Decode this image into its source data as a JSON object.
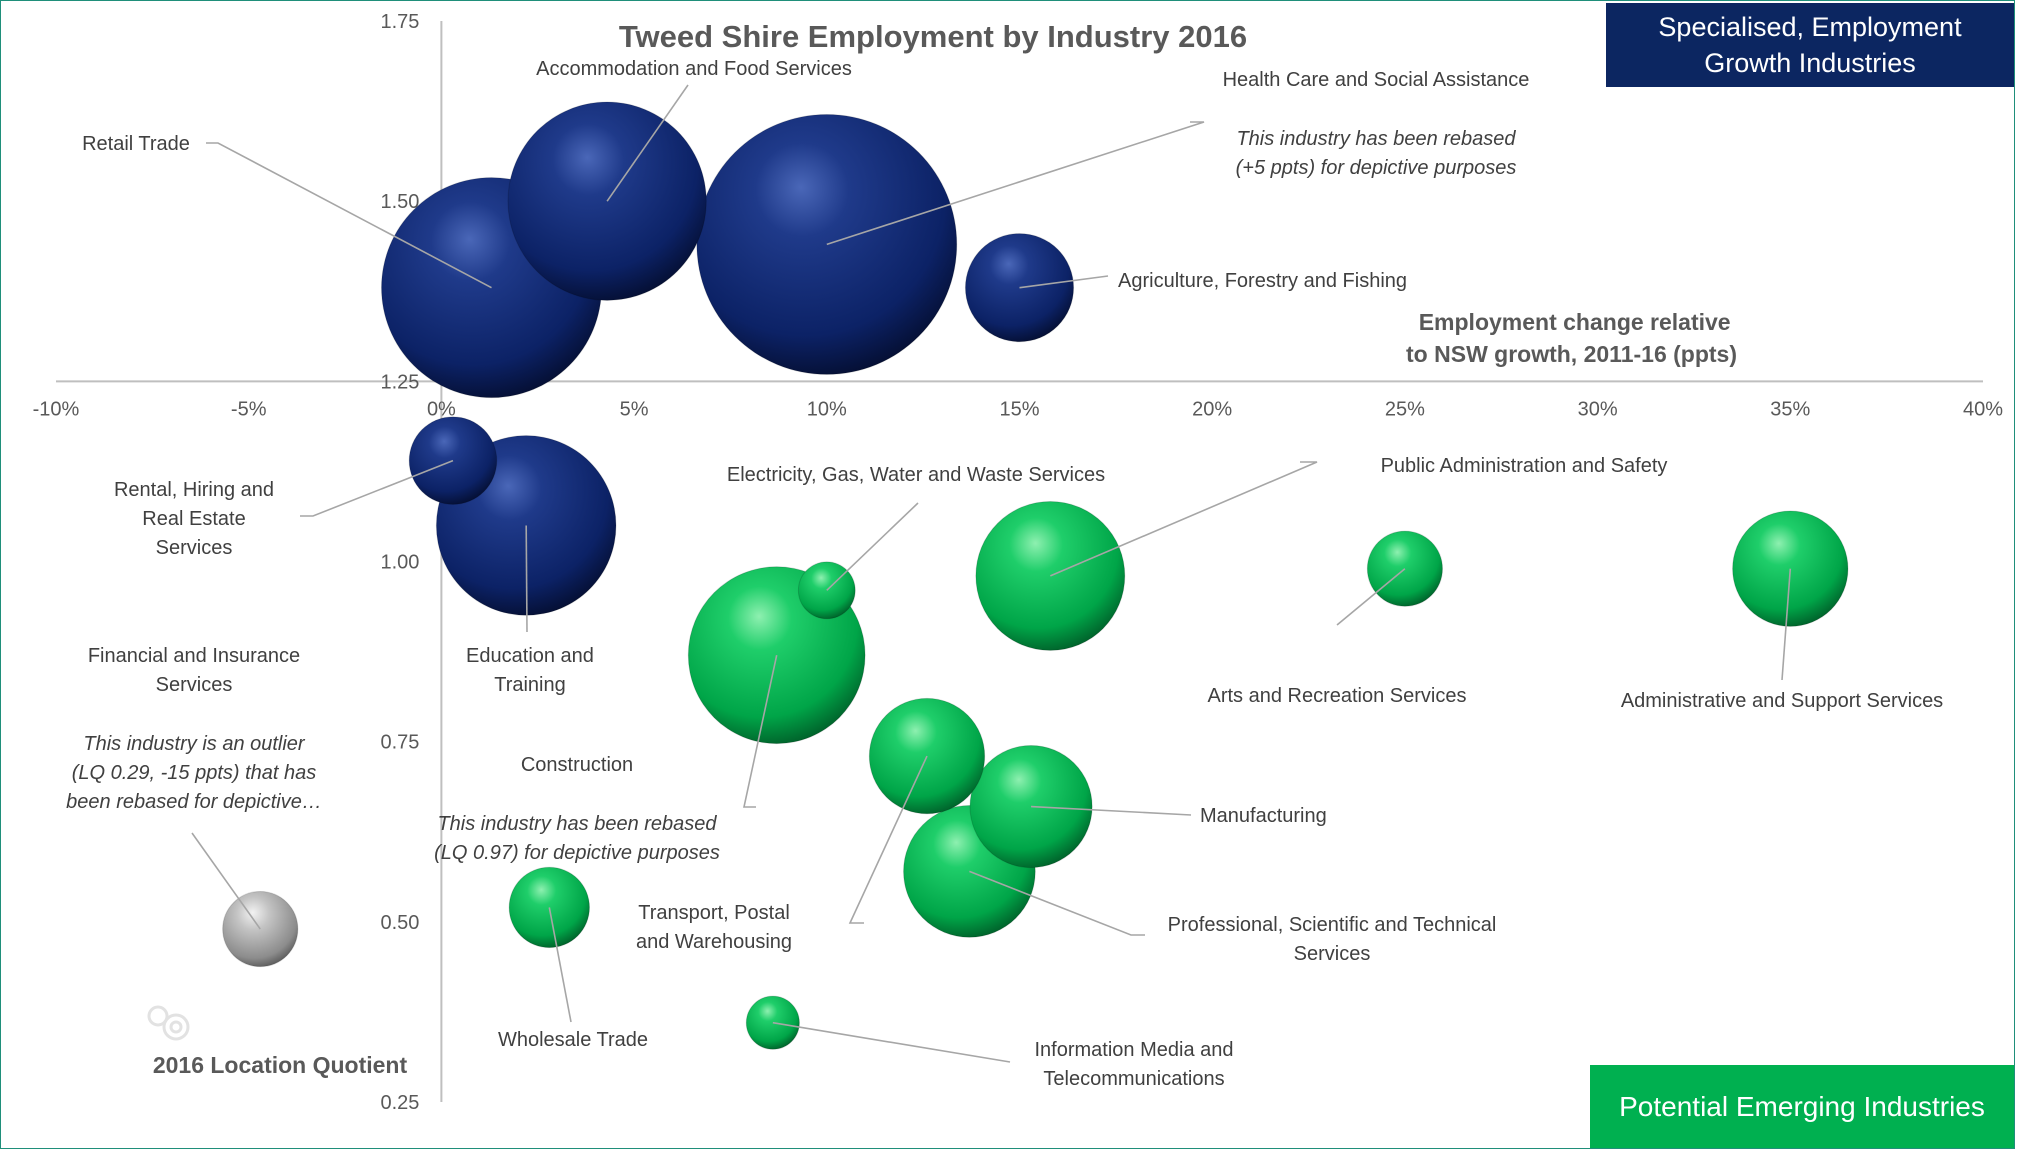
{
  "chart_data": {
    "type": "scatter",
    "subtype": "bubble",
    "title": "Tweed Shire Employment by Industry 2016",
    "xlabel": "Employment change relative to NSW growth, 2011-16 (ppts)",
    "xlabel_lines": [
      "Employment change relative",
      "to NSW growth, 2011-16 (ppts)"
    ],
    "ylabel": "2016 Location Quotient",
    "xlim": [
      -10,
      40
    ],
    "ylim": [
      0.25,
      1.75
    ],
    "x_ticks": [
      {
        "v": -10,
        "label": "-10%"
      },
      {
        "v": -5,
        "label": "-5%"
      },
      {
        "v": 0,
        "label": "0%"
      },
      {
        "v": 5,
        "label": "5%"
      },
      {
        "v": 10,
        "label": "10%"
      },
      {
        "v": 15,
        "label": "15%"
      },
      {
        "v": 20,
        "label": "20%"
      },
      {
        "v": 25,
        "label": "25%"
      },
      {
        "v": 30,
        "label": "30%"
      },
      {
        "v": 35,
        "label": "35%"
      },
      {
        "v": 40,
        "label": "40%"
      }
    ],
    "y_ticks": [
      {
        "v": 0.25,
        "label": "0.25"
      },
      {
        "v": 0.5,
        "label": "0.50"
      },
      {
        "v": 0.75,
        "label": "0.75"
      },
      {
        "v": 1.0,
        "label": "1.00"
      },
      {
        "v": 1.25,
        "label": "1.25"
      },
      {
        "v": 1.5,
        "label": "1.50"
      },
      {
        "v": 1.75,
        "label": "1.75"
      }
    ],
    "colors": {
      "navy": "#0c2661",
      "green": "#00a94f",
      "grey": "#a6a6a6",
      "accent_navy_box": "#0c2661",
      "accent_green_box": "#00b050"
    },
    "series": [
      {
        "name": "Retail Trade",
        "x": 1.3,
        "y": 1.38,
        "size": 2.4,
        "color": "navy",
        "label_lines": [
          "Retail Trade"
        ]
      },
      {
        "name": "Accommodation and Food Services",
        "x": 4.3,
        "y": 1.5,
        "size": 1.95,
        "color": "navy",
        "label_lines": [
          "Accommodation and Food Services"
        ]
      },
      {
        "name": "Health Care and Social Assistance",
        "x": 10.0,
        "y": 1.44,
        "size": 3.35,
        "color": "navy",
        "label_lines": [
          "Health Care and Social Assistance"
        ],
        "note_lines": [
          "This industry has been rebased",
          "(+5 ppts) for depictive purposes"
        ]
      },
      {
        "name": "Agriculture, Forestry and Fishing",
        "x": 15.0,
        "y": 1.38,
        "size": 0.58,
        "color": "navy",
        "label_lines": [
          "Agriculture, Forestry and Fishing"
        ]
      },
      {
        "name": "Rental, Hiring and Real Estate Services",
        "x": 0.3,
        "y": 1.14,
        "size": 0.38,
        "color": "navy",
        "label_lines": [
          "Rental, Hiring and",
          "Real Estate",
          "Services"
        ]
      },
      {
        "name": "Education and Training",
        "x": 2.2,
        "y": 1.05,
        "size": 1.6,
        "color": "navy",
        "label_lines": [
          "Education and",
          "Training"
        ]
      },
      {
        "name": "Electricity, Gas, Water and Waste Services",
        "x": 10.0,
        "y": 0.96,
        "size": 0.16,
        "color": "green",
        "label_lines": [
          "Electricity, Gas, Water and Waste Services"
        ]
      },
      {
        "name": "Public Administration and Safety",
        "x": 15.8,
        "y": 0.98,
        "size": 1.1,
        "color": "green",
        "label_lines": [
          "Public Administration and Safety"
        ]
      },
      {
        "name": "Arts and Recreation Services",
        "x": 25.0,
        "y": 0.99,
        "size": 0.28,
        "color": "green",
        "label_lines": [
          "Arts and Recreation Services"
        ]
      },
      {
        "name": "Administrative and Support Services",
        "x": 35.0,
        "y": 0.99,
        "size": 0.66,
        "color": "green",
        "label_lines": [
          "Administrative and Support Services"
        ]
      },
      {
        "name": "Construction",
        "x": 8.7,
        "y": 0.87,
        "size": 1.55,
        "color": "green",
        "label_lines": [
          "Construction"
        ],
        "note_lines": [
          "This industry has been rebased",
          "(LQ 0.97) for depictive purposes"
        ]
      },
      {
        "name": "Transport, Postal and Warehousing",
        "x": 12.6,
        "y": 0.73,
        "size": 0.66,
        "color": "green",
        "label_lines": [
          "Transport, Postal",
          "and Warehousing"
        ]
      },
      {
        "name": "Manufacturing",
        "x": 15.3,
        "y": 0.66,
        "size": 0.74,
        "color": "green",
        "label_lines": [
          "Manufacturing"
        ]
      },
      {
        "name": "Professional, Scientific and Technical Services",
        "x": 13.7,
        "y": 0.57,
        "size": 0.86,
        "color": "green",
        "label_lines": [
          "Professional, Scientific and Technical",
          "Services"
        ]
      },
      {
        "name": "Wholesale Trade",
        "x": 2.8,
        "y": 0.52,
        "size": 0.32,
        "color": "green",
        "label_lines": [
          "Wholesale Trade"
        ]
      },
      {
        "name": "Information Media and Telecommunications",
        "x": 8.6,
        "y": 0.36,
        "size": 0.14,
        "color": "green",
        "label_lines": [
          "Information Media and",
          "Telecommunications"
        ]
      },
      {
        "name": "Financial and Insurance Services",
        "x": -4.7,
        "y": 0.49,
        "size": 0.28,
        "color": "grey",
        "label_lines": [
          "Financial and Insurance",
          "Services"
        ],
        "note_lines": [
          "This industry is an outlier",
          "(LQ 0.29, -15 ppts) that has",
          "been rebased for depictive…"
        ]
      }
    ]
  },
  "boxes": {
    "top": "Specialised, Employment Growth Industries",
    "bottom": "Potential Emerging Industries"
  }
}
